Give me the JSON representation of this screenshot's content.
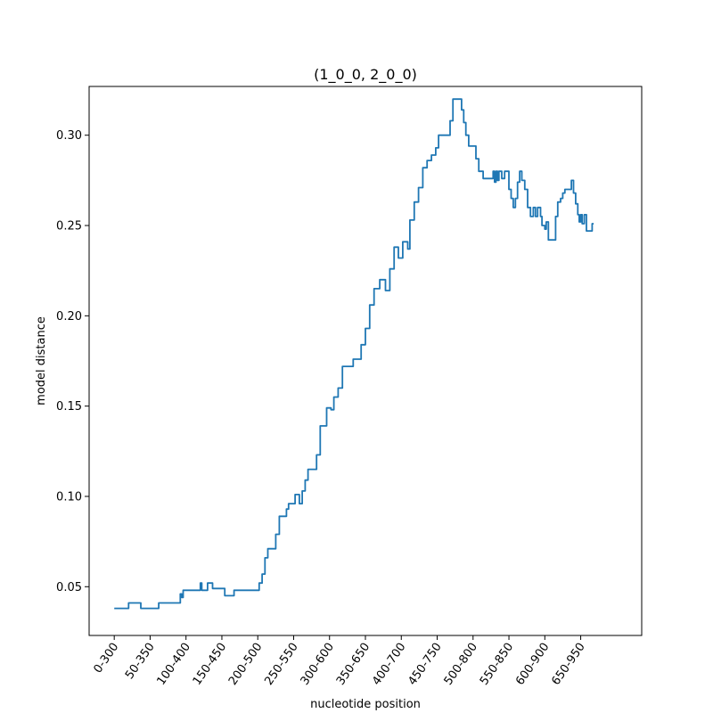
{
  "chart_data": {
    "type": "line",
    "title": "(1_0_0, 2_0_0)",
    "xlabel": "nucleotide position",
    "ylabel": "model distance",
    "xlim": [
      -35,
      735
    ],
    "ylim": [
      0.023,
      0.327
    ],
    "grid": false,
    "x_ticks": [
      0,
      50,
      100,
      150,
      200,
      250,
      300,
      350,
      400,
      450,
      500,
      550,
      600,
      650
    ],
    "x_tick_labels": [
      "0-300",
      "50-350",
      "100-400",
      "150-450",
      "200-500",
      "250-550",
      "300-600",
      "350-650",
      "400-700",
      "450-750",
      "500-800",
      "550-850",
      "600-900",
      "650-950"
    ],
    "y_ticks": [
      0.05,
      0.1,
      0.15,
      0.2,
      0.25,
      0.3
    ],
    "y_tick_labels": [
      "0.05",
      "0.10",
      "0.15",
      "0.20",
      "0.25",
      "0.30"
    ],
    "series": [
      {
        "color": "#1f77b4",
        "points": [
          [
            0,
            0.038
          ],
          [
            17,
            0.038
          ],
          [
            20,
            0.041
          ],
          [
            34,
            0.041
          ],
          [
            37,
            0.038
          ],
          [
            60,
            0.038
          ],
          [
            62,
            0.041
          ],
          [
            90,
            0.041
          ],
          [
            92,
            0.046
          ],
          [
            94,
            0.044
          ],
          [
            96,
            0.048
          ],
          [
            118,
            0.048
          ],
          [
            120,
            0.052
          ],
          [
            122,
            0.048
          ],
          [
            128,
            0.048
          ],
          [
            130,
            0.052
          ],
          [
            135,
            0.052
          ],
          [
            137,
            0.049
          ],
          [
            152,
            0.049
          ],
          [
            154,
            0.045
          ],
          [
            165,
            0.045
          ],
          [
            167,
            0.048
          ],
          [
            200,
            0.048
          ],
          [
            202,
            0.052
          ],
          [
            206,
            0.057
          ],
          [
            210,
            0.066
          ],
          [
            214,
            0.071
          ],
          [
            220,
            0.071
          ],
          [
            225,
            0.079
          ],
          [
            230,
            0.089
          ],
          [
            237,
            0.089
          ],
          [
            240,
            0.093
          ],
          [
            243,
            0.096
          ],
          [
            248,
            0.096
          ],
          [
            252,
            0.101
          ],
          [
            258,
            0.096
          ],
          [
            262,
            0.103
          ],
          [
            266,
            0.109
          ],
          [
            270,
            0.115
          ],
          [
            278,
            0.115
          ],
          [
            282,
            0.123
          ],
          [
            287,
            0.139
          ],
          [
            292,
            0.139
          ],
          [
            296,
            0.149
          ],
          [
            302,
            0.148
          ],
          [
            306,
            0.155
          ],
          [
            312,
            0.16
          ],
          [
            318,
            0.172
          ],
          [
            330,
            0.172
          ],
          [
            333,
            0.176
          ],
          [
            340,
            0.176
          ],
          [
            344,
            0.184
          ],
          [
            350,
            0.193
          ],
          [
            356,
            0.206
          ],
          [
            362,
            0.215
          ],
          [
            370,
            0.22
          ],
          [
            378,
            0.214
          ],
          [
            384,
            0.226
          ],
          [
            390,
            0.238
          ],
          [
            396,
            0.232
          ],
          [
            402,
            0.241
          ],
          [
            407,
            0.241
          ],
          [
            409,
            0.237
          ],
          [
            412,
            0.253
          ],
          [
            418,
            0.263
          ],
          [
            424,
            0.271
          ],
          [
            430,
            0.282
          ],
          [
            436,
            0.286
          ],
          [
            442,
            0.289
          ],
          [
            448,
            0.293
          ],
          [
            452,
            0.3
          ],
          [
            465,
            0.3
          ],
          [
            468,
            0.308
          ],
          [
            472,
            0.32
          ],
          [
            480,
            0.32
          ],
          [
            484,
            0.314
          ],
          [
            487,
            0.307
          ],
          [
            490,
            0.3
          ],
          [
            494,
            0.294
          ],
          [
            500,
            0.294
          ],
          [
            504,
            0.287
          ],
          [
            508,
            0.28
          ],
          [
            514,
            0.276
          ],
          [
            526,
            0.276
          ],
          [
            528,
            0.28
          ],
          [
            530,
            0.274
          ],
          [
            532,
            0.28
          ],
          [
            534,
            0.275
          ],
          [
            536,
            0.28
          ],
          [
            540,
            0.276
          ],
          [
            544,
            0.28
          ],
          [
            550,
            0.27
          ],
          [
            553,
            0.265
          ],
          [
            556,
            0.26
          ],
          [
            559,
            0.265
          ],
          [
            562,
            0.274
          ],
          [
            565,
            0.28
          ],
          [
            568,
            0.275
          ],
          [
            572,
            0.27
          ],
          [
            576,
            0.26
          ],
          [
            580,
            0.255
          ],
          [
            584,
            0.26
          ],
          [
            587,
            0.255
          ],
          [
            590,
            0.26
          ],
          [
            594,
            0.255
          ],
          [
            596,
            0.25
          ],
          [
            600,
            0.248
          ],
          [
            602,
            0.252
          ],
          [
            605,
            0.242
          ],
          [
            612,
            0.242
          ],
          [
            615,
            0.255
          ],
          [
            618,
            0.263
          ],
          [
            622,
            0.265
          ],
          [
            625,
            0.268
          ],
          [
            628,
            0.27
          ],
          [
            635,
            0.27
          ],
          [
            637,
            0.275
          ],
          [
            640,
            0.268
          ],
          [
            643,
            0.262
          ],
          [
            646,
            0.256
          ],
          [
            648,
            0.252
          ],
          [
            650,
            0.256
          ],
          [
            652,
            0.251
          ],
          [
            655,
            0.256
          ],
          [
            658,
            0.247
          ],
          [
            664,
            0.247
          ],
          [
            666,
            0.251
          ],
          [
            668,
            0.251
          ]
        ]
      }
    ]
  }
}
